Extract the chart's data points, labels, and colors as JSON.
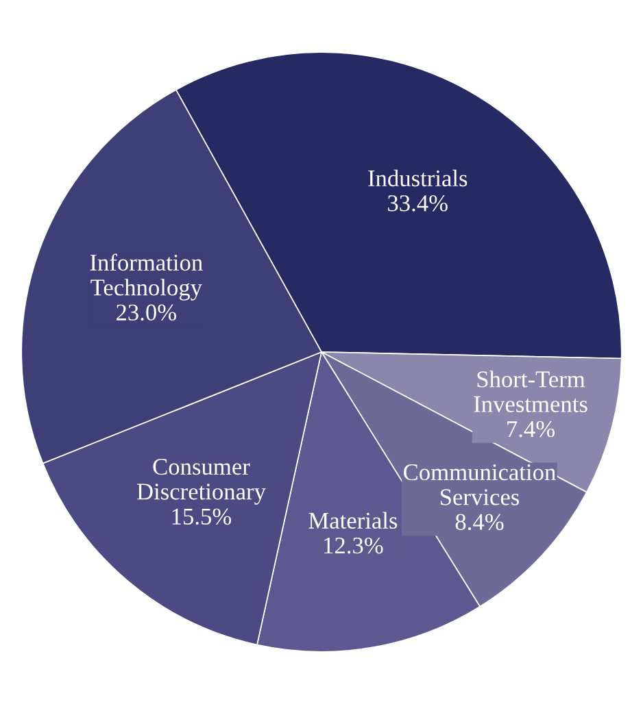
{
  "chart_data": {
    "type": "pie",
    "categories": [
      "Industrials",
      "Short-Term Investments",
      "Communication Services",
      "Materials",
      "Consumer Discretionary",
      "Information Technology"
    ],
    "values": [
      33.4,
      7.4,
      8.4,
      12.3,
      15.5,
      23.0
    ],
    "value_labels": [
      "33.4%",
      "7.4%",
      "8.4%",
      "12.3%",
      "15.5%",
      "23.0%"
    ],
    "colors": [
      "#252a63",
      "#8b86ab",
      "#6e6a98",
      "#5d5990",
      "#4c4a82",
      "#3e3f77"
    ]
  }
}
